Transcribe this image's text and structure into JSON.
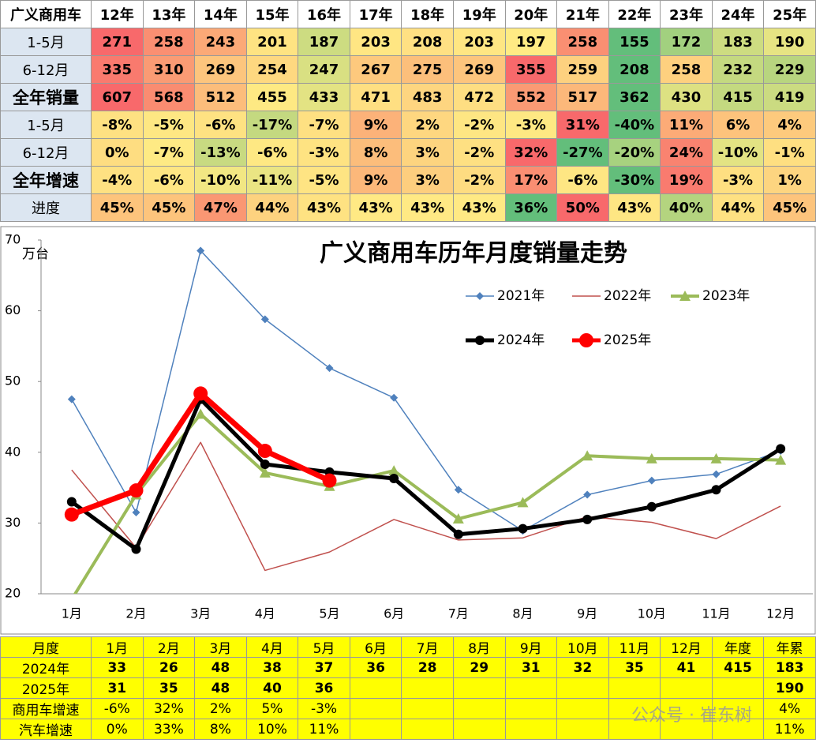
{
  "top_table": {
    "header": [
      "广义商用车",
      "12年",
      "13年",
      "14年",
      "15年",
      "16年",
      "17年",
      "18年",
      "19年",
      "20年",
      "21年",
      "22年",
      "23年",
      "24年",
      "25年"
    ],
    "rows": [
      {
        "label": "1-5月",
        "cells": [
          "271",
          "258",
          "243",
          "201",
          "187",
          "203",
          "208",
          "203",
          "197",
          "258",
          "155",
          "172",
          "183",
          "190"
        ],
        "colors": [
          "#f8696b",
          "#fa8f72",
          "#fba977",
          "#fee382",
          "#cddc81",
          "#ffe683",
          "#ffe083",
          "#ffe683",
          "#ffeb84",
          "#fa8f72",
          "#63be7b",
          "#a2d07f",
          "#cddc81",
          "#e6e483"
        ]
      },
      {
        "label": "6-12月",
        "cells": [
          "335",
          "310",
          "269",
          "254",
          "247",
          "267",
          "275",
          "269",
          "355",
          "259",
          "208",
          "258",
          "232",
          "229"
        ],
        "colors": [
          "#f97a6e",
          "#fa9b74",
          "#fdc57d",
          "#fed880",
          "#d9e082",
          "#fdc97d",
          "#fcbf7b",
          "#fdc57d",
          "#f8696b",
          "#fdd17f",
          "#63be7b",
          "#fed07f",
          "#c4d980",
          "#b8d57f"
        ]
      },
      {
        "label": "全年销量",
        "cells": [
          "607",
          "568",
          "512",
          "455",
          "433",
          "471",
          "483",
          "472",
          "552",
          "517",
          "362",
          "430",
          "415",
          "419"
        ],
        "colors": [
          "#f8696b",
          "#fa8c71",
          "#fcbd7b",
          "#fee983",
          "#e3e383",
          "#ffdf82",
          "#fed580",
          "#fede82",
          "#fa9a74",
          "#fcb87a",
          "#63be7b",
          "#dde182",
          "#c4d980",
          "#cbdb81"
        ]
      },
      {
        "label": "1-5月",
        "cells": [
          "-8%",
          "-5%",
          "-6%",
          "-17%",
          "-7%",
          "9%",
          "2%",
          "-2%",
          "-3%",
          "31%",
          "-40%",
          "11%",
          "6%",
          "4%"
        ],
        "colors": [
          "#fee182",
          "#fee783",
          "#fee282",
          "#c4d980",
          "#fee082",
          "#fcb279",
          "#fed780",
          "#fee683",
          "#fee883",
          "#f8696b",
          "#63be7b",
          "#fcab77",
          "#fdc37c",
          "#fdca7d"
        ]
      },
      {
        "label": "6-12月",
        "cells": [
          "0%",
          "-7%",
          "-13%",
          "-6%",
          "-3%",
          "8%",
          "3%",
          "-2%",
          "32%",
          "-27%",
          "-20%",
          "24%",
          "-10%",
          "-1%"
        ],
        "colors": [
          "#fedd81",
          "#feea84",
          "#c8da81",
          "#fee883",
          "#fee382",
          "#fcbd7b",
          "#fdd47f",
          "#fee082",
          "#f8696b",
          "#63be7b",
          "#a7d27f",
          "#f98370",
          "#e3e383",
          "#fedf81"
        ]
      },
      {
        "label": "全年增速",
        "cells": [
          "-4%",
          "-6%",
          "-10%",
          "-11%",
          "-5%",
          "9%",
          "3%",
          "-2%",
          "17%",
          "-6%",
          "-30%",
          "19%",
          "-3%",
          "1%"
        ],
        "colors": [
          "#fee182",
          "#fee683",
          "#f2e783",
          "#eae583",
          "#fee483",
          "#fcb87a",
          "#fdce7e",
          "#fedc81",
          "#fa8e72",
          "#fee683",
          "#63be7b",
          "#f97b6f",
          "#fedf81",
          "#fdd580"
        ]
      },
      {
        "label": "进度",
        "cells": [
          "45%",
          "45%",
          "47%",
          "44%",
          "43%",
          "43%",
          "43%",
          "43%",
          "36%",
          "50%",
          "43%",
          "40%",
          "44%",
          "45%"
        ],
        "colors": [
          "#fdc47c",
          "#fdc47c",
          "#fa9773",
          "#fdd27f",
          "#fee282",
          "#ffe984",
          "#ffe984",
          "#ffe984",
          "#63be7b",
          "#f8696b",
          "#fee683",
          "#b4d47f",
          "#fee182",
          "#fdc47c"
        ]
      }
    ]
  },
  "chart_data": {
    "type": "line",
    "title": "广义商用车历年月度销量走势",
    "y_unit": "万台",
    "categories": [
      "1月",
      "2月",
      "3月",
      "4月",
      "5月",
      "6月",
      "7月",
      "8月",
      "9月",
      "10月",
      "11月",
      "12月"
    ],
    "ylim": [
      20,
      70
    ],
    "yticks": [
      20,
      30,
      40,
      50,
      60,
      70
    ],
    "series": [
      {
        "name": "2021年",
        "color": "#4f81bd",
        "width": 1.5,
        "marker": "diamond",
        "values": [
          47.5,
          31.5,
          68.5,
          58.8,
          51.9,
          47.7,
          34.7,
          28.9,
          34.0,
          36.0,
          36.9,
          40.2
        ]
      },
      {
        "name": "2022年",
        "color": "#c0504d",
        "width": 1.5,
        "marker": "none",
        "values": [
          37.5,
          26.5,
          41.4,
          23.3,
          25.9,
          30.5,
          27.6,
          27.9,
          30.9,
          30.1,
          27.8,
          32.4
        ]
      },
      {
        "name": "2023年",
        "color": "#9bbb59",
        "width": 4,
        "marker": "triangle",
        "values": [
          19.2,
          34.0,
          45.4,
          37.1,
          35.2,
          37.4,
          30.6,
          32.9,
          39.5,
          39.1,
          39.1,
          38.9
        ]
      },
      {
        "name": "2024年",
        "color": "#000000",
        "width": 5,
        "marker": "circle",
        "values": [
          33.0,
          26.3,
          47.5,
          38.3,
          37.2,
          36.3,
          28.4,
          29.2,
          30.5,
          32.3,
          34.7,
          40.5
        ]
      },
      {
        "name": "2025年",
        "color": "#ff0000",
        "width": 7,
        "marker": "bigcircle",
        "values": [
          31.2,
          34.6,
          48.3,
          40.2,
          36.0,
          null,
          null,
          null,
          null,
          null,
          null,
          null
        ]
      }
    ]
  },
  "bottom_table": {
    "header": [
      "月度",
      "1月",
      "2月",
      "3月",
      "4月",
      "5月",
      "6月",
      "7月",
      "8月",
      "9月",
      "10月",
      "11月",
      "12月",
      "年度",
      "年累"
    ],
    "rows": [
      [
        "2024年",
        "33",
        "26",
        "48",
        "38",
        "37",
        "36",
        "28",
        "29",
        "31",
        "32",
        "35",
        "41",
        "415",
        "183"
      ],
      [
        "2025年",
        "31",
        "35",
        "48",
        "40",
        "36",
        null,
        null,
        null,
        null,
        null,
        null,
        null,
        null,
        "190"
      ],
      [
        "商用车增速",
        "-6%",
        "32%",
        "2%",
        "5%",
        "-3%",
        null,
        null,
        null,
        null,
        null,
        null,
        null,
        null,
        "4%"
      ],
      [
        "汽车增速",
        "0%",
        "33%",
        "8%",
        "10%",
        "11%",
        null,
        null,
        null,
        null,
        null,
        null,
        null,
        null,
        "11%"
      ]
    ]
  },
  "watermark": "公众号 · 崔东树"
}
